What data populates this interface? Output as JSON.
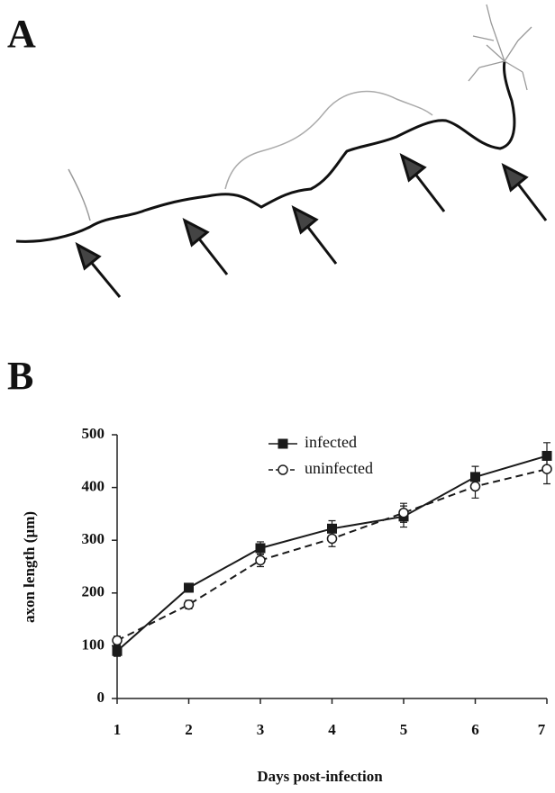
{
  "panel_labels": [
    "A",
    "B"
  ],
  "chart_data": {
    "type": "line",
    "x_label": "Days post-infection",
    "y_label": "axon length (µm)",
    "x": [
      1,
      2,
      3,
      4,
      5,
      6,
      7
    ],
    "series": [
      {
        "name": "infected",
        "color": "#1a1a1a",
        "marker": "square",
        "dashed": false,
        "values": [
          90,
          210,
          285,
          322,
          345,
          420,
          460
        ],
        "errors": [
          10,
          8,
          12,
          15,
          20,
          20,
          25
        ]
      },
      {
        "name": "uninfected",
        "color": "#1a1a1a",
        "marker": "circle",
        "dashed": true,
        "values": [
          110,
          178,
          262,
          303,
          352,
          402,
          435
        ],
        "errors": [
          8,
          8,
          12,
          15,
          18,
          22,
          28
        ]
      }
    ],
    "xlim": [
      1,
      7
    ],
    "xticks": [
      1,
      2,
      3,
      4,
      5,
      6,
      7
    ],
    "ylim": [
      0,
      500
    ],
    "yticks": [
      0,
      100,
      200,
      300,
      400,
      500
    ],
    "legend": "top-center"
  }
}
